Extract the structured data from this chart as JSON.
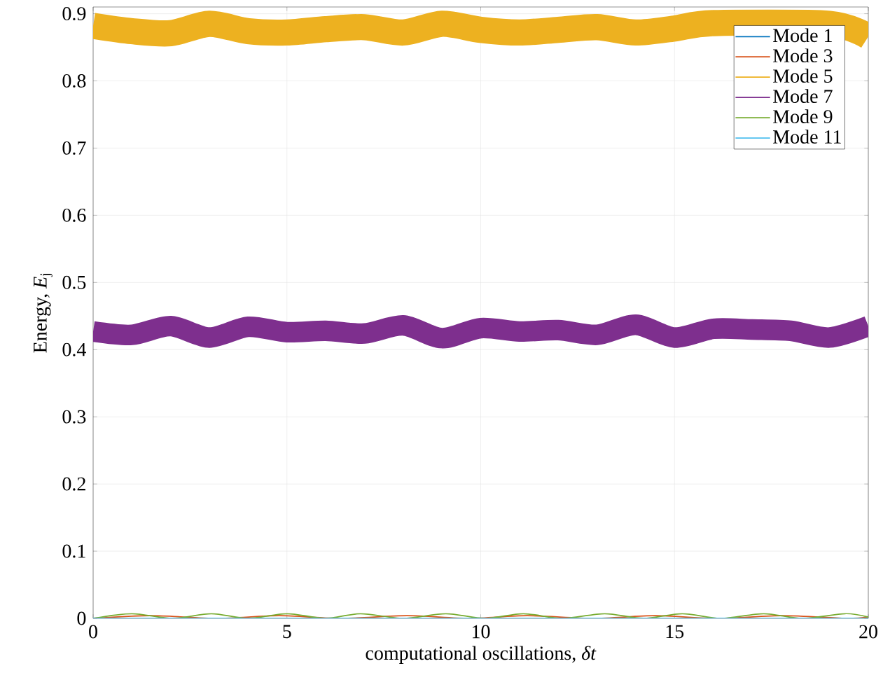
{
  "chart_data": {
    "type": "line",
    "xlabel": "computational oscillations, *δt*",
    "ylabel": "Energy, *E*$_{j}$",
    "xlim": [
      0,
      20
    ],
    "ylim": [
      0,
      0.91
    ],
    "xticks": [
      0,
      5,
      10,
      15,
      20
    ],
    "yticks": [
      0,
      0.1,
      0.2,
      0.3,
      0.4,
      0.5,
      0.6,
      0.7,
      0.8,
      0.9
    ],
    "grid": true,
    "legend": "top right",
    "series": [
      {
        "name": "Mode 1",
        "color": "#0072bd",
        "values": [
          null,
          null
        ]
      },
      {
        "name": "Mode 3",
        "color": "#d95319",
        "x": [
          0,
          1.5,
          3.2,
          4.8,
          6.4,
          8.1,
          9.7,
          11.2,
          12.9,
          14.5,
          16.1,
          17.8,
          19.4,
          20
        ],
        "values": [
          0,
          0.004,
          0,
          0.004,
          0,
          0.004,
          0,
          0.004,
          0,
          0.004,
          0,
          0.004,
          0,
          0.002
        ]
      },
      {
        "name": "Mode 5",
        "color": "#edb120",
        "x": [
          0,
          1,
          2,
          3,
          4,
          5,
          6,
          7,
          8,
          9,
          10,
          11,
          12,
          13,
          14,
          15,
          16,
          17,
          18,
          19,
          20
        ],
        "values": [
          0.882,
          0.874,
          0.871,
          0.885,
          0.874,
          0.872,
          0.877,
          0.88,
          0.872,
          0.885,
          0.876,
          0.872,
          0.876,
          0.88,
          0.872,
          0.878,
          0.886,
          null,
          null,
          0.885,
          0.866
        ]
      },
      {
        "name": "Mode 7",
        "color": "#7e2f8e",
        "x": [
          0,
          1,
          2,
          3,
          4,
          5,
          6,
          7,
          8,
          9,
          10,
          11,
          12,
          13,
          14,
          15,
          16,
          17,
          18,
          19,
          20
        ],
        "values": [
          0.427,
          0.422,
          0.435,
          0.418,
          0.434,
          0.426,
          0.428,
          0.424,
          0.436,
          0.417,
          0.432,
          0.427,
          0.429,
          0.422,
          0.437,
          0.418,
          0.431,
          0.43,
          0.428,
          0.418,
          0.435
        ]
      },
      {
        "name": "Mode 9",
        "color": "#77ac30",
        "x": [
          0,
          1.0,
          2.05,
          3.05,
          4.0,
          5.0,
          6.0,
          6.9,
          8.0,
          9.1,
          10.1,
          11.1,
          12.1,
          13.2,
          14.2,
          15.2,
          16.2,
          17.3,
          18.3,
          19.4,
          20
        ],
        "values": [
          0,
          0.007,
          0,
          0.007,
          0,
          0.007,
          0,
          0.007,
          0,
          0.007,
          0,
          0.007,
          0,
          0.007,
          0,
          0.007,
          0,
          0.007,
          0,
          0.007,
          0.002
        ]
      },
      {
        "name": "Mode 11",
        "color": "#4dbeee",
        "x": [
          0,
          20
        ],
        "values": [
          0,
          0
        ]
      }
    ]
  }
}
